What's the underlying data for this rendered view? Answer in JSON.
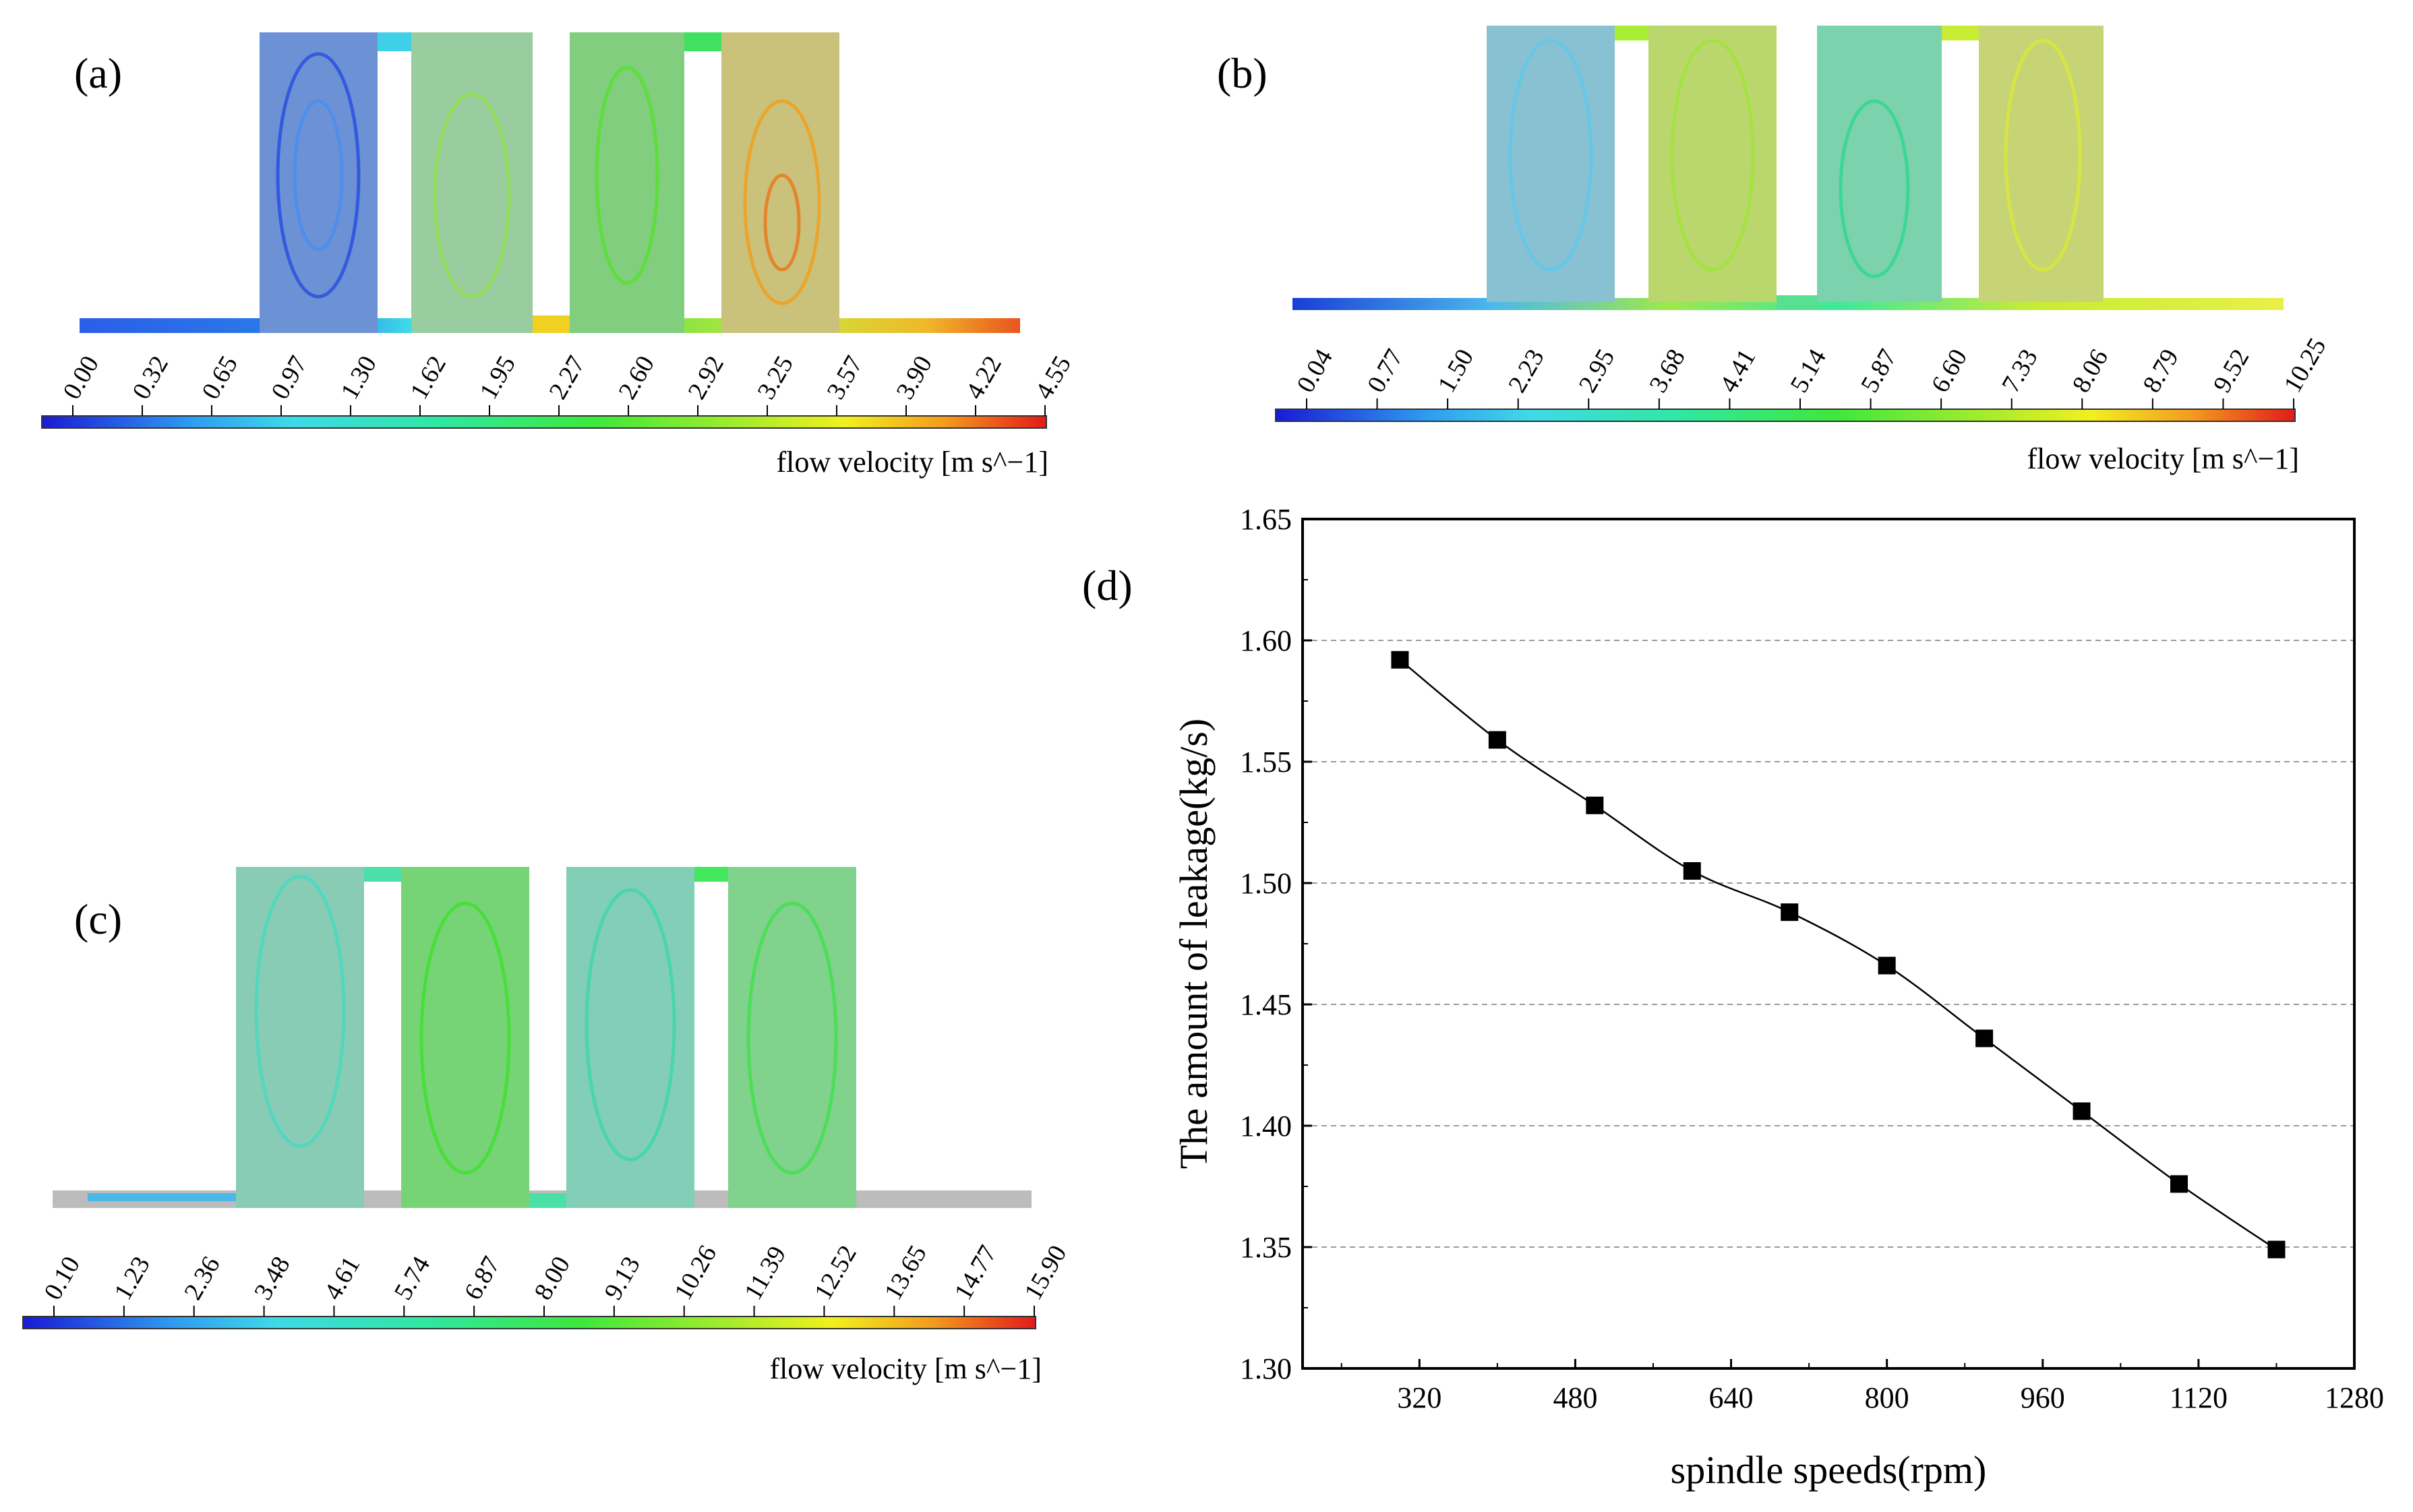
{
  "panels": [
    {
      "label": "(a)",
      "colorbar": {
        "ticks": [
          "0.00",
          "0.32",
          "0.65",
          "0.97",
          "1.30",
          "1.62",
          "1.95",
          "2.27",
          "2.60",
          "2.92",
          "3.25",
          "3.57",
          "3.90",
          "4.22",
          "4.55"
        ],
        "unit": "flow velocity [m s^−1]"
      }
    },
    {
      "label": "(b)",
      "colorbar": {
        "ticks": [
          "0.04",
          "0.77",
          "1.50",
          "2.23",
          "2.95",
          "3.68",
          "4.41",
          "5.14",
          "5.87",
          "6.60",
          "7.33",
          "8.06",
          "8.79",
          "9.52",
          "10.25"
        ],
        "unit": "flow velocity [m s^−1]"
      }
    },
    {
      "label": "(c)",
      "colorbar": {
        "ticks": [
          "0.10",
          "1.23",
          "2.36",
          "3.48",
          "4.61",
          "5.74",
          "6.87",
          "8.00",
          "9.13",
          "10.26",
          "11.39",
          "12.52",
          "13.65",
          "14.77",
          "15.90"
        ],
        "unit": "flow velocity [m s^−1]"
      }
    }
  ],
  "chart_label": "(d)",
  "chart_data": {
    "type": "line",
    "title": "",
    "xlabel": "spindle speeds(rpm)",
    "ylabel": "The amount of leakage(kg/s)",
    "x": [
      300,
      400,
      500,
      600,
      700,
      800,
      900,
      1000,
      1100,
      1200
    ],
    "y": [
      1.592,
      1.559,
      1.532,
      1.505,
      1.488,
      1.466,
      1.436,
      1.406,
      1.376,
      1.349
    ],
    "xlim": [
      200,
      1280
    ],
    "ylim": [
      1.3,
      1.65
    ],
    "xticks": [
      320,
      480,
      640,
      800,
      960,
      1120,
      1280
    ],
    "yticks": [
      "1.30",
      "1.35",
      "1.40",
      "1.45",
      "1.50",
      "1.55",
      "1.60",
      "1.65"
    ],
    "marker": "square",
    "grid": "horizontal dashed"
  },
  "colors": {
    "gray": "#bcbcbc",
    "line": "#000000"
  }
}
